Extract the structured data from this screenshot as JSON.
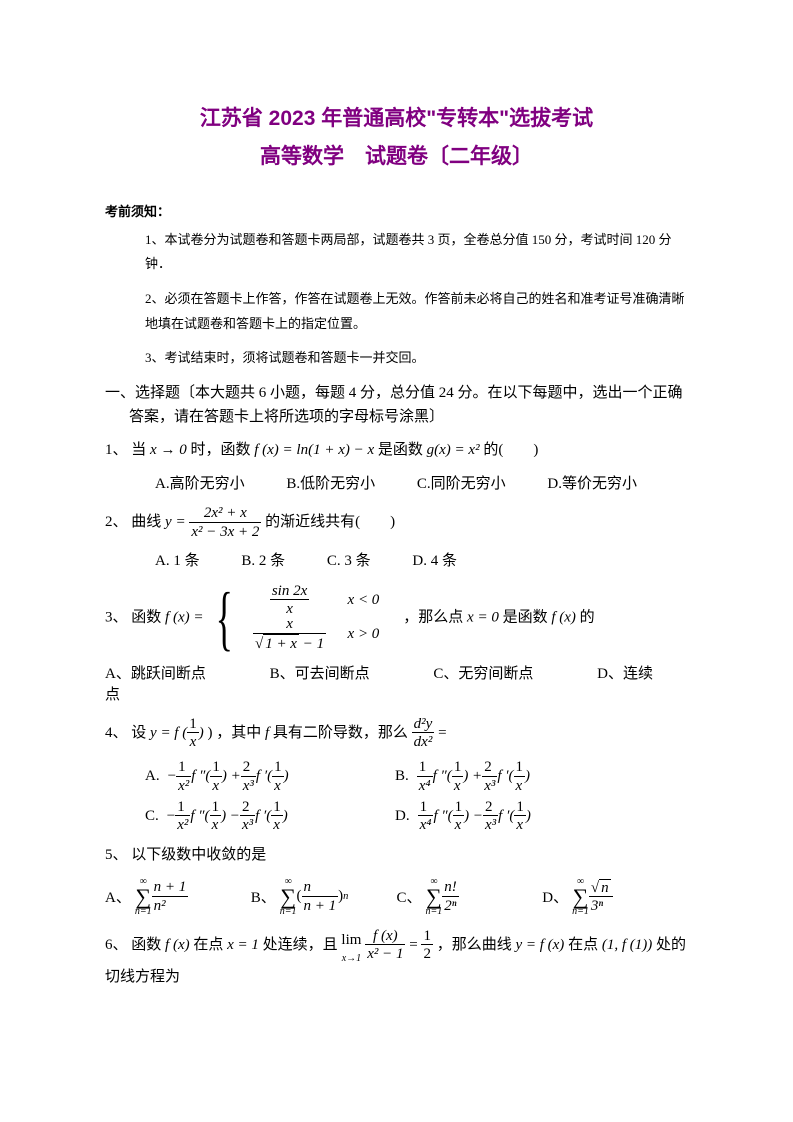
{
  "colors": {
    "title": "#800080",
    "text": "#000000",
    "bg": "#ffffff"
  },
  "typography": {
    "title_size": 21,
    "body_size": 15,
    "notice_size": 13,
    "title_font": "SimHei",
    "body_font": "SimSun"
  },
  "title1": "江苏省 2023 年普通高校\"专转本\"选拔考试",
  "title2": "高等数学　试题卷〔二年级〕",
  "notice_h": "考前须知：",
  "notice1": "1、本试卷分为试题卷和答题卡两局部，试题卷共 3 页，全卷总分值 150 分，考试时间 120 分钟．",
  "notice2": "2、必须在答题卡上作答，作答在试题卷上无效。作答前未必将自己的姓名和准考证号准确清晰地填在试题卷和答题卡上的指定位置。",
  "notice3": "3、考试结束时，须将试题卷和答题卡一并交回。",
  "section1": "一、选择题〔本大题共 6 小题，每题 4 分，总分值 24 分。在以下每题中，选出一个正确答案，请在答题卡上将所选项的字母标号涂黑〕",
  "q1": {
    "label": "1、",
    "text_a": "当",
    "limit": "x → 0",
    "text_b": "时，函数",
    "fx": "f (x) = ln(1 + x) − x",
    "text_c": " 是函数",
    "gx": "g(x) = x²",
    "text_d": "的(　　)",
    "optA": "A.高阶无穷小",
    "optB": "B.低阶无穷小",
    "optC": "C.同阶无穷小",
    "optD": "D.等价无穷小"
  },
  "q2": {
    "label": "2、",
    "text_a": "曲线",
    "y_eq": "y =",
    "num": "2x² + x",
    "den": "x² − 3x + 2",
    "text_b": "的渐近线共有(　　)",
    "optA": "A. 1 条",
    "optB": "B. 2 条",
    "optC": "C. 3 条",
    "optD": "D. 4 条"
  },
  "q3": {
    "label": "3、",
    "text_a": "函数",
    "fx": "f (x) =",
    "case1_num": "sin 2x",
    "case1_den": "x",
    "case1_cond": "x < 0",
    "case2_num": "x",
    "case2_den_a": "√",
    "case2_den_b": "1 + x",
    "case2_den_c": " − 1",
    "case2_cond": "x > 0",
    "text_b": "，那么点",
    "pt": "x = 0",
    "text_c": " 是函数",
    "fx2": "f (x)",
    "text_d": " 的",
    "optA": "A、跳跃间断点",
    "optB": "B、可去间断点",
    "optC": "C、无穷间断点",
    "optD": "D、连续点"
  },
  "q4": {
    "label": "4、",
    "text_a": "设",
    "y_eq": "y = f (",
    "arg_num": "1",
    "arg_den": "x",
    "text_b": ") ，其中",
    "f": "f",
    "text_c": " 具有二阶导数，那么",
    "d2y_num": "d²y",
    "d2y_den": "dx²",
    "eq": " =",
    "A": "A.",
    "B": "B.",
    "C": "C.",
    "D": "D."
  },
  "q5": {
    "label": "5、",
    "text": "以下级数中收敛的是",
    "A": "A、",
    "B": "B、",
    "C": "C、",
    "D": "D、",
    "sA_num": "n + 1",
    "sA_den": "n²",
    "sB_base_num": "n",
    "sB_base_den": "n + 1",
    "sB_exp": "n",
    "sC_num": "n!",
    "sC_den": "2ⁿ",
    "sD_num_a": "√",
    "sD_num_b": "n",
    "sD_den": "3ⁿ",
    "sum_top": "∞",
    "sum_bot": "n=1"
  },
  "q6": {
    "label": "6、",
    "text_a": "函数",
    "fx": "f (x)",
    "text_b": " 在点",
    "x1": "x = 1",
    "text_c": "处连续，且",
    "lim_lbl": "lim",
    "lim_sub": "x→1",
    "lim_num": "f (x)",
    "lim_den": "x² − 1",
    "eq": " = ",
    "half_num": "1",
    "half_den": "2",
    "text_d": "，那么曲线",
    "yfx": "y = f (x)",
    "text_e": " 在点",
    "pt": "(1, f (1))",
    "text_f": " 处的切线方程为"
  }
}
